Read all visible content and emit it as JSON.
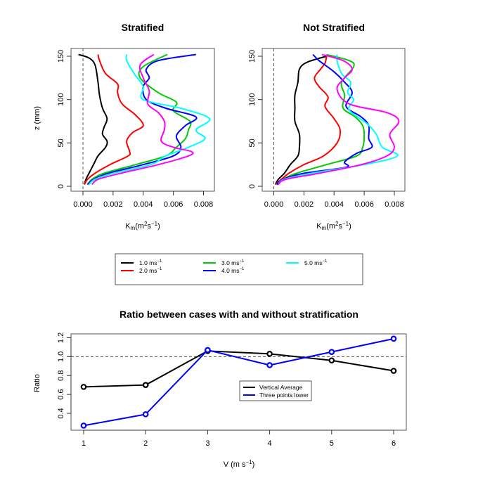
{
  "chart_data": [
    {
      "type": "line",
      "title": "Stratified",
      "xlabel": "K_m(m^2 s^-1)",
      "ylabel": "z (mm)",
      "xlim": [
        -0.0004,
        0.0086
      ],
      "ylim": [
        -5,
        160
      ],
      "xticks": [
        "0.000",
        "0.002",
        "0.004",
        "0.006",
        "0.008"
      ],
      "xtick_values": [
        0,
        0.002,
        0.004,
        0.006,
        0.008
      ],
      "yticks": [
        "0",
        "50",
        "100",
        "150"
      ],
      "ytick_values": [
        0,
        50,
        100,
        150
      ],
      "reference_line": {
        "x": 0,
        "style": "dashed"
      },
      "series": [
        {
          "name": "1.0 ms-1",
          "color": "#000000",
          "points": [
            [
              0.0001,
              2
            ],
            [
              0.0002,
              8
            ],
            [
              0.0004,
              15
            ],
            [
              0.0007,
              25
            ],
            [
              0.001,
              35
            ],
            [
              0.0015,
              45
            ],
            [
              0.0016,
              52
            ],
            [
              0.0013,
              60
            ],
            [
              0.0014,
              68
            ],
            [
              0.0016,
              78
            ],
            [
              0.0013,
              90
            ],
            [
              0.0011,
              105
            ],
            [
              0.001,
              120
            ],
            [
              0.0008,
              140
            ],
            [
              0.0004,
              148
            ],
            [
              -0.0003,
              152
            ]
          ]
        },
        {
          "name": "2.0 ms-1",
          "color": "#ff0000",
          "points": [
            [
              0.0001,
              2
            ],
            [
              0.0003,
              8
            ],
            [
              0.0008,
              15
            ],
            [
              0.0018,
              25
            ],
            [
              0.003,
              35
            ],
            [
              0.0031,
              40
            ],
            [
              0.0029,
              52
            ],
            [
              0.0033,
              62
            ],
            [
              0.004,
              70
            ],
            [
              0.0035,
              82
            ],
            [
              0.0026,
              95
            ],
            [
              0.0023,
              108
            ],
            [
              0.0023,
              118
            ],
            [
              0.0015,
              130
            ],
            [
              0.0011,
              145
            ],
            [
              0.001,
              152
            ]
          ]
        },
        {
          "name": "3.0 ms-1",
          "color": "#00cc00",
          "points": [
            [
              0.0003,
              2
            ],
            [
              0.0006,
              8
            ],
            [
              0.0014,
              15
            ],
            [
              0.0035,
              25
            ],
            [
              0.0055,
              35
            ],
            [
              0.0062,
              45
            ],
            [
              0.0068,
              55
            ],
            [
              0.007,
              65
            ],
            [
              0.0071,
              75
            ],
            [
              0.006,
              87
            ],
            [
              0.0062,
              97
            ],
            [
              0.005,
              108
            ],
            [
              0.0038,
              125
            ],
            [
              0.004,
              138
            ],
            [
              0.0056,
              152
            ]
          ]
        },
        {
          "name": "4.0 ms-1",
          "color": "#0000ff",
          "points": [
            [
              0.0003,
              2
            ],
            [
              0.0007,
              8
            ],
            [
              0.0017,
              15
            ],
            [
              0.004,
              25
            ],
            [
              0.006,
              35
            ],
            [
              0.0065,
              45
            ],
            [
              0.0062,
              58
            ],
            [
              0.0068,
              70
            ],
            [
              0.0075,
              80
            ],
            [
              0.0055,
              90
            ],
            [
              0.0042,
              100
            ],
            [
              0.004,
              115
            ],
            [
              0.0044,
              125
            ],
            [
              0.0042,
              135
            ],
            [
              0.005,
              145
            ],
            [
              0.0075,
              152
            ]
          ]
        },
        {
          "name": "5.0 ms-1",
          "color": "#00ffff",
          "points": [
            [
              0.0004,
              2
            ],
            [
              0.0008,
              8
            ],
            [
              0.002,
              15
            ],
            [
              0.0045,
              25
            ],
            [
              0.0055,
              35
            ],
            [
              0.007,
              45
            ],
            [
              0.0081,
              55
            ],
            [
              0.0075,
              65
            ],
            [
              0.0084,
              78
            ],
            [
              0.0065,
              90
            ],
            [
              0.004,
              100
            ],
            [
              0.004,
              115
            ],
            [
              0.0034,
              130
            ],
            [
              0.0029,
              145
            ],
            [
              0.0029,
              152
            ]
          ]
        },
        {
          "name": "magenta",
          "color": "#ff00ff",
          "points": [
            [
              0.0006,
              2
            ],
            [
              0.001,
              8
            ],
            [
              0.0025,
              15
            ],
            [
              0.005,
              25
            ],
            [
              0.007,
              35
            ],
            [
              0.0072,
              40
            ],
            [
              0.006,
              45
            ],
            [
              0.0052,
              52
            ],
            [
              0.0054,
              65
            ],
            [
              0.0054,
              75
            ],
            [
              0.005,
              85
            ],
            [
              0.0043,
              95
            ],
            [
              0.0044,
              110
            ],
            [
              0.004,
              125
            ],
            [
              0.0038,
              140
            ],
            [
              0.0047,
              152
            ]
          ]
        }
      ]
    },
    {
      "type": "line",
      "title": "Not Stratified",
      "xlabel": "K_m(m^2 s^-1)",
      "ylabel": "",
      "xlim": [
        -0.0004,
        0.0086
      ],
      "ylim": [
        -5,
        160
      ],
      "xticks": [
        "0.000",
        "0.002",
        "0.004",
        "0.006",
        "0.008"
      ],
      "xtick_values": [
        0,
        0.002,
        0.004,
        0.006,
        0.008
      ],
      "yticks": [
        "0",
        "50",
        "100",
        "150"
      ],
      "ytick_values": [
        0,
        50,
        100,
        150
      ],
      "reference_line": {
        "x": 0,
        "style": "dashed"
      },
      "series": [
        {
          "name": "1.0 ms-1",
          "color": "#000000",
          "points": [
            [
              0.0001,
              2
            ],
            [
              0.0003,
              8
            ],
            [
              0.0007,
              15
            ],
            [
              0.0011,
              25
            ],
            [
              0.0016,
              35
            ],
            [
              0.0017,
              45
            ],
            [
              0.0017,
              60
            ],
            [
              0.0014,
              75
            ],
            [
              0.0014,
              90
            ],
            [
              0.0014,
              105
            ],
            [
              0.0016,
              120
            ],
            [
              0.0017,
              135
            ],
            [
              0.0022,
              143
            ],
            [
              0.0035,
              150
            ]
          ]
        },
        {
          "name": "2.0 ms-1",
          "color": "#ff0000",
          "points": [
            [
              0.0001,
              2
            ],
            [
              0.0005,
              8
            ],
            [
              0.001,
              15
            ],
            [
              0.002,
              25
            ],
            [
              0.0033,
              35
            ],
            [
              0.0042,
              50
            ],
            [
              0.0044,
              65
            ],
            [
              0.004,
              78
            ],
            [
              0.0034,
              92
            ],
            [
              0.0036,
              103
            ],
            [
              0.003,
              115
            ],
            [
              0.0027,
              125
            ],
            [
              0.0031,
              135
            ],
            [
              0.0034,
              142
            ],
            [
              0.0035,
              150
            ]
          ]
        },
        {
          "name": "3.0 ms-1",
          "color": "#00cc00",
          "points": [
            [
              0.0002,
              2
            ],
            [
              0.0006,
              8
            ],
            [
              0.0015,
              15
            ],
            [
              0.0035,
              25
            ],
            [
              0.0055,
              35
            ],
            [
              0.0059,
              45
            ],
            [
              0.006,
              58
            ],
            [
              0.0059,
              70
            ],
            [
              0.0054,
              80
            ],
            [
              0.0046,
              90
            ],
            [
              0.0047,
              105
            ],
            [
              0.0045,
              120
            ],
            [
              0.0053,
              138
            ],
            [
              0.005,
              145
            ],
            [
              0.0035,
              152
            ]
          ]
        },
        {
          "name": "4.0 ms-1",
          "color": "#0000ff",
          "points": [
            [
              0.0002,
              2
            ],
            [
              0.0006,
              8
            ],
            [
              0.002,
              15
            ],
            [
              0.0048,
              22
            ],
            [
              0.0047,
              28
            ],
            [
              0.0055,
              38
            ],
            [
              0.0065,
              45
            ],
            [
              0.0063,
              55
            ],
            [
              0.0063,
              70
            ],
            [
              0.0058,
              80
            ],
            [
              0.0048,
              92
            ],
            [
              0.0052,
              108
            ],
            [
              0.0047,
              120
            ],
            [
              0.004,
              132
            ],
            [
              0.003,
              145
            ],
            [
              0.0026,
              152
            ]
          ]
        },
        {
          "name": "5.0 ms-1",
          "color": "#00ffff",
          "points": [
            [
              0.0003,
              2
            ],
            [
              0.0007,
              8
            ],
            [
              0.0025,
              15
            ],
            [
              0.006,
              25
            ],
            [
              0.0082,
              35
            ],
            [
              0.0072,
              45
            ],
            [
              0.0068,
              60
            ],
            [
              0.0062,
              72
            ],
            [
              0.005,
              88
            ],
            [
              0.0053,
              100
            ],
            [
              0.0049,
              108
            ],
            [
              0.0051,
              120
            ],
            [
              0.0045,
              130
            ],
            [
              0.0042,
              145
            ],
            [
              0.0042,
              152
            ]
          ]
        },
        {
          "name": "magenta",
          "color": "#ff00ff",
          "points": [
            [
              0.0003,
              2
            ],
            [
              0.0008,
              8
            ],
            [
              0.003,
              15
            ],
            [
              0.0058,
              25
            ],
            [
              0.0075,
              35
            ],
            [
              0.008,
              45
            ],
            [
              0.0077,
              60
            ],
            [
              0.0083,
              75
            ],
            [
              0.0075,
              85
            ],
            [
              0.005,
              95
            ],
            [
              0.0042,
              112
            ],
            [
              0.0047,
              125
            ],
            [
              0.0052,
              135
            ],
            [
              0.0046,
              145
            ],
            [
              0.0032,
              152
            ]
          ]
        }
      ]
    },
    {
      "type": "line",
      "title": "Ratio between cases with and without stratification",
      "xlabel": "V (m s^-1)",
      "ylabel": "Ratio",
      "xlim": [
        0.8,
        6.2
      ],
      "ylim": [
        0.22,
        1.25
      ],
      "xticks": [
        "1",
        "2",
        "3",
        "4",
        "5",
        "6"
      ],
      "xtick_values": [
        1,
        2,
        3,
        4,
        5,
        6
      ],
      "yticks": [
        "0.4",
        "0.6",
        "0.8",
        "1.0",
        "1.2"
      ],
      "ytick_values": [
        0.4,
        0.6,
        0.8,
        1.0,
        1.2
      ],
      "reference_line": {
        "y": 1.0,
        "style": "dashed"
      },
      "legend_position": "center-right",
      "series": [
        {
          "name": "Vertical Average",
          "color": "#000000",
          "x": [
            1,
            2,
            3,
            4,
            5,
            6
          ],
          "values": [
            0.68,
            0.7,
            1.06,
            1.03,
            0.96,
            0.85
          ]
        },
        {
          "name": "Three points lower",
          "color": "#0000ff",
          "x": [
            1,
            2,
            3,
            4,
            5,
            6
          ],
          "values": [
            0.27,
            0.39,
            1.07,
            0.91,
            1.05,
            1.19
          ]
        }
      ]
    }
  ],
  "shared_legend": {
    "entries": [
      {
        "label": "1.0 ms",
        "sup": "−1",
        "color": "#000000"
      },
      {
        "label": "2.0 ms",
        "sup": "−1",
        "color": "#ff0000"
      },
      {
        "label": "3.0 ms",
        "sup": "−1",
        "color": "#00cc00"
      },
      {
        "label": "4.0 ms",
        "sup": "−1",
        "color": "#0000ff"
      },
      {
        "label": "5.0 ms",
        "sup": "−1",
        "color": "#00ffff"
      }
    ]
  },
  "text": {
    "km_label_main": "K",
    "km_label_sub": "m",
    "km_label_paren": "(m",
    "km_sq": "2",
    "km_s": "s",
    "km_inv": "−1",
    "km_close": ")",
    "v_label": "V (m s",
    "v_inv": "−1",
    "v_close": ")"
  }
}
